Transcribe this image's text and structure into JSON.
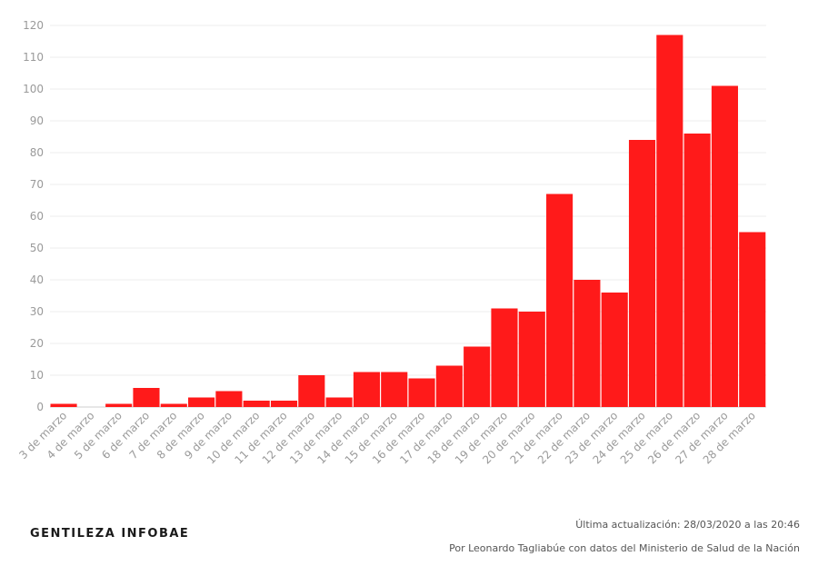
{
  "chart_data": {
    "type": "bar",
    "categories": [
      "3 de marzo",
      "4 de marzo",
      "5 de marzo",
      "6 de marzo",
      "7 de marzo",
      "8 de marzo",
      "9 de marzo",
      "10 de marzo",
      "11 de marzo",
      "12 de marzo",
      "13 de marzo",
      "14 de marzo",
      "15 de marzo",
      "16 de marzo",
      "17 de marzo",
      "18 de marzo",
      "19 de marzo",
      "20 de marzo",
      "21 de marzo",
      "22 de marzo",
      "23 de marzo",
      "24 de marzo",
      "25 de marzo",
      "26 de marzo",
      "27 de marzo",
      "28 de marzo"
    ],
    "values": [
      1,
      0,
      1,
      6,
      1,
      3,
      5,
      2,
      2,
      10,
      3,
      11,
      11,
      9,
      13,
      19,
      31,
      30,
      67,
      40,
      36,
      84,
      117,
      86,
      101,
      55
    ],
    "yticks": [
      0,
      10,
      20,
      30,
      40,
      50,
      60,
      70,
      80,
      90,
      100,
      110,
      120
    ],
    "ylim": [
      0,
      120
    ],
    "grid": true,
    "bar_color": "#ff1a1a",
    "title": "",
    "xlabel": "",
    "ylabel": ""
  },
  "footer": {
    "credit": "GENTILEZA INFOBAE",
    "updated": "Última actualización: 28/03/2020 a las 20:46",
    "byline": "Por Leonardo Tagliabúe con datos del Ministerio de Salud de la Nación"
  }
}
